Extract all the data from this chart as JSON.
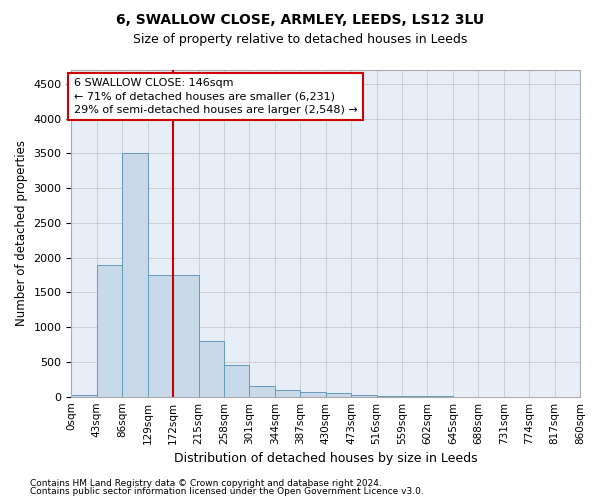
{
  "title": "6, SWALLOW CLOSE, ARMLEY, LEEDS, LS12 3LU",
  "subtitle": "Size of property relative to detached houses in Leeds",
  "xlabel": "Distribution of detached houses by size in Leeds",
  "ylabel": "Number of detached properties",
  "footnote1": "Contains HM Land Registry data © Crown copyright and database right 2024.",
  "footnote2": "Contains public sector information licensed under the Open Government Licence v3.0.",
  "bin_edges": [
    0,
    43,
    86,
    129,
    172,
    215,
    258,
    301,
    344,
    387,
    430,
    473,
    516,
    559,
    602,
    645,
    688,
    731,
    774,
    817,
    860
  ],
  "bin_labels": [
    "0sqm",
    "43sqm",
    "86sqm",
    "129sqm",
    "172sqm",
    "215sqm",
    "258sqm",
    "301sqm",
    "344sqm",
    "387sqm",
    "430sqm",
    "473sqm",
    "516sqm",
    "559sqm",
    "602sqm",
    "645sqm",
    "688sqm",
    "731sqm",
    "774sqm",
    "817sqm",
    "860sqm"
  ],
  "bar_heights": [
    30,
    1900,
    3500,
    1750,
    1750,
    800,
    450,
    150,
    100,
    70,
    50,
    20,
    8,
    5,
    3,
    2,
    1,
    1,
    0,
    0
  ],
  "bar_color": "#c8d9ea",
  "bar_edge_color": "#6699bb",
  "vline_x_index": 4,
  "vline_color": "#cc0000",
  "annotation_text": "6 SWALLOW CLOSE: 146sqm\n← 71% of detached houses are smaller (6,231)\n29% of semi-detached houses are larger (2,548) →",
  "ylim": [
    0,
    4700
  ],
  "yticks": [
    0,
    500,
    1000,
    1500,
    2000,
    2500,
    3000,
    3500,
    4000,
    4500
  ],
  "background_color": "#e8eef8",
  "grid_color": "#c8c8d0",
  "fig_width": 6.0,
  "fig_height": 5.0
}
